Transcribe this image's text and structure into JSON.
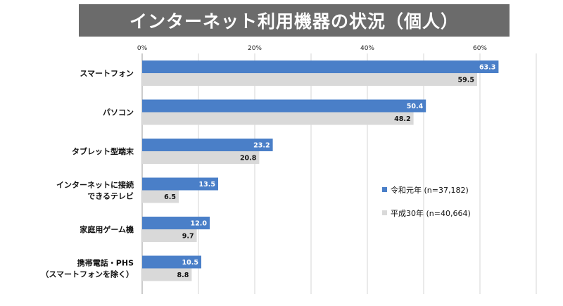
{
  "title": "インターネット利用機器の状況（個人）",
  "colors": {
    "series1": "#4a7fc8",
    "series2": "#d9d9d9",
    "title_bg": "#6b6b6b",
    "grid": "#d6d6d6"
  },
  "chart_data": {
    "type": "bar",
    "orientation": "horizontal",
    "title": "インターネット利用機器の状況（個人）",
    "categories": [
      [
        "スマートフォン"
      ],
      [
        "パソコン"
      ],
      [
        "タブレット型端末"
      ],
      [
        "インターネットに接続",
        "できるテレビ"
      ],
      [
        "家庭用ゲーム機"
      ],
      [
        "携帯電話・PHS",
        "（スマートフォンを除く）"
      ]
    ],
    "series": [
      {
        "name": "令和元年 (n=37,182)",
        "values": [
          63.3,
          50.4,
          23.2,
          13.5,
          12.0,
          10.5
        ]
      },
      {
        "name": "平成30年 (n=40,664)",
        "values": [
          59.5,
          48.2,
          20.8,
          6.5,
          9.7,
          8.8
        ]
      }
    ],
    "xticks": [
      "0%",
      "20%",
      "40%",
      "60%"
    ],
    "xlim": [
      0,
      70
    ],
    "grid": true,
    "legend": "right"
  }
}
